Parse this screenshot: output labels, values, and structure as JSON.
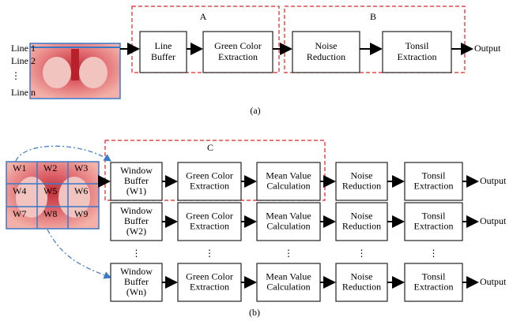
{
  "part_a": {
    "line_labels": [
      "Line 1",
      "Line 2",
      "⋮",
      "Line n"
    ],
    "group_labels": [
      "A",
      "B"
    ],
    "boxes": [
      [
        "Line",
        "Buffer"
      ],
      [
        "Green Color",
        "Extraction"
      ],
      [
        "Noise",
        "Reduction"
      ],
      [
        "Tonsil",
        "Extraction"
      ]
    ],
    "output": "Output",
    "caption": "(a)"
  },
  "part_b": {
    "group_label": "C",
    "window_labels": [
      "W1",
      "W2",
      "W3",
      "W4",
      "W5",
      "W6",
      "W7",
      "W8",
      "W9"
    ],
    "rows": [
      {
        "boxes": [
          [
            "Window",
            "Buffer",
            "(W1)"
          ],
          [
            "Green Color",
            "Extraction"
          ],
          [
            "Mean Value",
            "Calculation"
          ],
          [
            "Noise",
            "Reduction"
          ],
          [
            "Tonsil",
            "Extraction"
          ]
        ],
        "output": "Output"
      },
      {
        "boxes": [
          [
            "Window",
            "Buffer",
            "(W2)"
          ],
          [
            "Green Color",
            "Extraction"
          ],
          [
            "Mean Value",
            "Calculation"
          ],
          [
            "Noise",
            "Reduction"
          ],
          [
            "Tonsil",
            "Extraction"
          ]
        ],
        "output": "Output"
      },
      {
        "boxes": [
          [
            "Window",
            "Buffer",
            "(Wn)"
          ],
          [
            "Green Color",
            "Extraction"
          ],
          [
            "Mean Value",
            "Calculation"
          ],
          [
            "Noise",
            "Reduction"
          ],
          [
            "Tonsil",
            "Extraction"
          ]
        ],
        "output": "Output"
      }
    ],
    "row_dots": [
      "⋮",
      "⋮",
      "⋮",
      "⋮",
      "⋮"
    ],
    "caption": "(b)"
  }
}
